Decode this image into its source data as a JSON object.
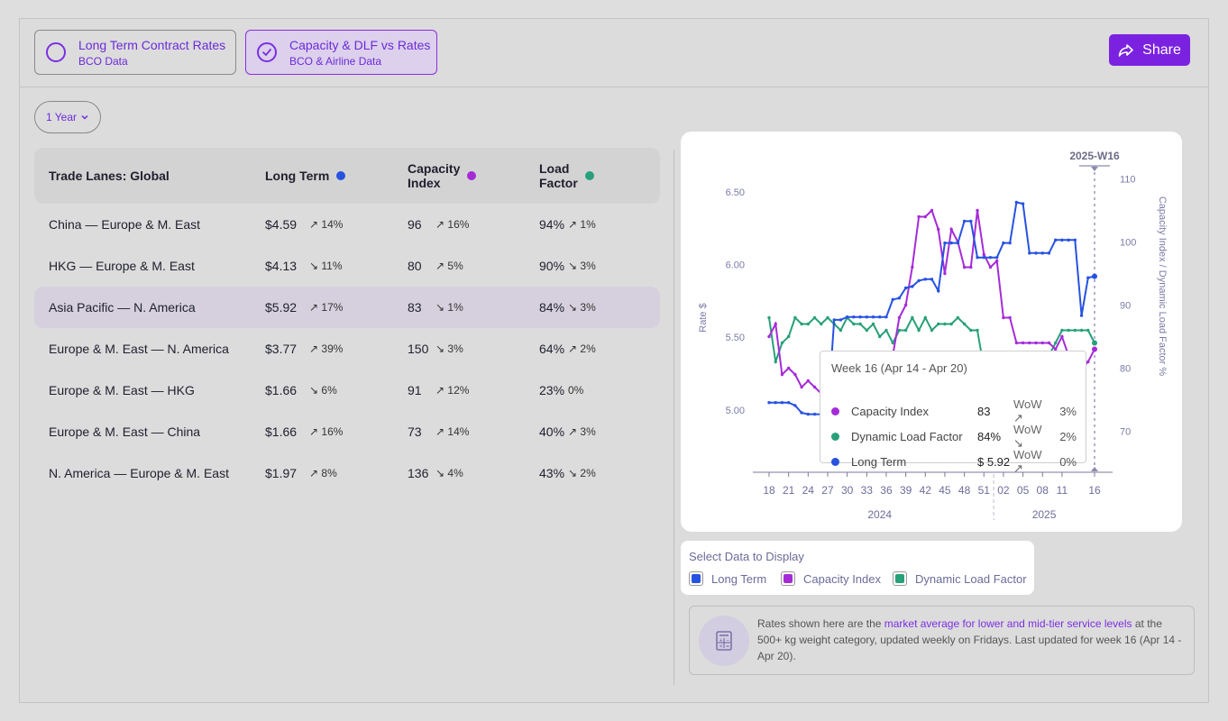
{
  "tabs": [
    {
      "title": "Long Term Contract Rates",
      "subtitle": "BCO Data"
    },
    {
      "title": "Capacity & DLF vs Rates",
      "subtitle": "BCO & Airline Data"
    }
  ],
  "share_label": "Share",
  "period_label": "1 Year",
  "table": {
    "headers": {
      "lane": "Trade Lanes: Global",
      "long_term": "Long Term",
      "capacity_1": "Capacity",
      "capacity_2": "Index",
      "load_1": "Load",
      "load_2": "Factor"
    },
    "rows": [
      {
        "lane": "China — Europe & M. East",
        "lt": "$4.59",
        "lt_chg": "↗ 14%",
        "ci": "96",
        "ci_chg": "↗ 16%",
        "lf": "94%",
        "lf_chg": "↗ 1%"
      },
      {
        "lane": "HKG — Europe & M. East",
        "lt": "$4.13",
        "lt_chg": "↘ 11%",
        "ci": "80",
        "ci_chg": "↗ 5%",
        "lf": "90%",
        "lf_chg": "↘ 3%"
      },
      {
        "lane": "Asia Pacific — N. America",
        "lt": "$5.92",
        "lt_chg": "↗ 17%",
        "ci": "83",
        "ci_chg": "↘ 1%",
        "lf": "84%",
        "lf_chg": "↘ 3%"
      },
      {
        "lane": "Europe & M. East — N. America",
        "lt": "$3.77",
        "lt_chg": "↗ 39%",
        "ci": "150",
        "ci_chg": "↘ 3%",
        "lf": "64%",
        "lf_chg": "↗ 2%"
      },
      {
        "lane": "Europe & M. East — HKG",
        "lt": "$1.66",
        "lt_chg": "↘ 6%",
        "ci": "91",
        "ci_chg": "↗ 12%",
        "lf": "23%",
        "lf_chg": "0%"
      },
      {
        "lane": "Europe & M. East — China",
        "lt": "$1.66",
        "lt_chg": "↗ 16%",
        "ci": "73",
        "ci_chg": "↗ 14%",
        "lf": "40%",
        "lf_chg": "↗ 3%"
      },
      {
        "lane": "N. America — Europe & M. East",
        "lt": "$1.97",
        "lt_chg": "↗ 8%",
        "ci": "136",
        "ci_chg": "↘ 4%",
        "lf": "43%",
        "lf_chg": "↘ 2%"
      }
    ],
    "selected_index": 2
  },
  "colors": {
    "long_term": "#2752e0",
    "capacity": "#a52bd8",
    "load": "#28a07a",
    "accent": "#7b22e0"
  },
  "tooltip": {
    "title": "Week 16 (Apr 14 - Apr 20)",
    "rows": [
      {
        "name": "Capacity Index",
        "value": "83",
        "wow": "WoW ↗",
        "pct": "3%"
      },
      {
        "name": "Dynamic Load Factor",
        "value": "84%",
        "wow": "WoW ↘",
        "pct": "2%"
      },
      {
        "name": "Long Term",
        "value": "$ 5.92",
        "wow": "WoW ↗",
        "pct": "0%"
      }
    ]
  },
  "chart_data": {
    "type": "line",
    "marker_label": "2025-W16",
    "ylabel_left": "Rate $",
    "ylabel_right": "Capacity Index / Dynamic Load Factor %",
    "ylim_left": [
      4.57,
      6.7
    ],
    "ylim_right": [
      63.5,
      112.5
    ],
    "left_ticks": [
      "6.50",
      "6.00",
      "5.50",
      "5.00"
    ],
    "right_ticks": [
      "110",
      "100",
      "90",
      "80",
      "70"
    ],
    "x_ticks": [
      "18",
      "21",
      "24",
      "27",
      "30",
      "33",
      "36",
      "39",
      "42",
      "45",
      "48",
      "51",
      "02",
      "05",
      "08",
      "11",
      "16"
    ],
    "year_labels": [
      "2024",
      "2025"
    ],
    "weeks": [
      "2024-W18",
      "2024-W19",
      "2024-W20",
      "2024-W21",
      "2024-W22",
      "2024-W23",
      "2024-W24",
      "2024-W25",
      "2024-W26",
      "2024-W27",
      "2024-W28",
      "2024-W29",
      "2024-W30",
      "2024-W31",
      "2024-W32",
      "2024-W33",
      "2024-W34",
      "2024-W35",
      "2024-W36",
      "2024-W37",
      "2024-W38",
      "2024-W39",
      "2024-W40",
      "2024-W41",
      "2024-W42",
      "2024-W43",
      "2024-W44",
      "2024-W45",
      "2024-W46",
      "2024-W47",
      "2024-W48",
      "2024-W49",
      "2024-W50",
      "2024-W51",
      "2024-W52",
      "2025-W01",
      "2025-W02",
      "2025-W03",
      "2025-W04",
      "2025-W05",
      "2025-W06",
      "2025-W07",
      "2025-W08",
      "2025-W09",
      "2025-W10",
      "2025-W11",
      "2025-W12",
      "2025-W13",
      "2025-W14",
      "2025-W15",
      "2025-W16"
    ],
    "series": [
      {
        "name": "Long Term",
        "axis": "left",
        "values": [
          5.05,
          5.05,
          5.05,
          5.05,
          5.03,
          4.98,
          4.97,
          4.97,
          4.97,
          4.97,
          5.62,
          5.62,
          5.64,
          5.64,
          5.64,
          5.64,
          5.64,
          5.64,
          5.64,
          5.76,
          5.77,
          5.84,
          5.85,
          5.89,
          5.9,
          5.9,
          5.82,
          6.15,
          6.15,
          6.15,
          6.3,
          6.3,
          6.05,
          6.05,
          6.05,
          6.05,
          6.15,
          6.15,
          6.43,
          6.42,
          6.08,
          6.08,
          6.08,
          6.08,
          6.17,
          6.17,
          6.17,
          6.17,
          5.65,
          5.91,
          5.92
        ]
      },
      {
        "name": "Capacity Index",
        "axis": "right",
        "values": [
          85,
          87,
          79,
          80,
          79,
          77,
          78,
          77,
          76,
          76,
          76,
          76,
          76,
          76,
          76,
          76,
          76,
          76,
          80,
          82,
          88,
          90,
          96,
          104,
          104,
          105,
          102,
          95,
          102,
          100,
          96,
          96,
          105,
          98,
          96,
          97,
          88,
          88,
          84,
          84,
          84,
          84,
          84,
          84,
          83,
          85,
          82,
          81,
          80,
          81,
          83
        ]
      },
      {
        "name": "Dynamic Load Factor",
        "axis": "right",
        "values": [
          88,
          81,
          84,
          85,
          88,
          87,
          87,
          88,
          87,
          88,
          87,
          86,
          88,
          87,
          87,
          86,
          87,
          85,
          86,
          84,
          86,
          86,
          88,
          86,
          88,
          86,
          87,
          87,
          87,
          88,
          87,
          86,
          86,
          80,
          80,
          80,
          80,
          80,
          80,
          82,
          82,
          82,
          82,
          82,
          84,
          86,
          86,
          86,
          86,
          86,
          84
        ]
      }
    ]
  },
  "legend": {
    "title": "Select Data to Display",
    "items": [
      "Long Term",
      "Capacity Index",
      "Dynamic Load Factor"
    ]
  },
  "note": {
    "pre": "Rates shown here are the ",
    "highlight": "market average for lower and mid-tier service levels",
    "post": " at the 500+ kg weight category, updated weekly on Fridays. Last updated for week 16 (Apr 14 - Apr 20)."
  }
}
